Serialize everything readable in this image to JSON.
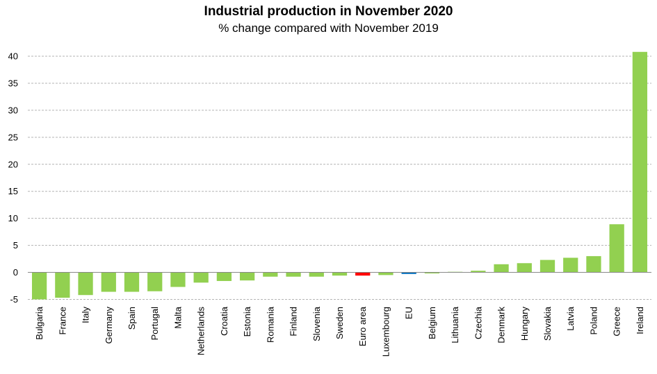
{
  "chart_data": {
    "type": "bar",
    "title": "Industrial production in November 2020",
    "subtitle": "% change compared with November 2019",
    "xlabel": "",
    "ylabel": "",
    "ylim": [
      -5,
      40
    ],
    "yticks": [
      -5,
      0,
      5,
      10,
      15,
      20,
      25,
      30,
      35,
      40
    ],
    "grid": true,
    "categories": [
      "Bulgaria",
      "France",
      "Italy",
      "Germany",
      "Spain",
      "Portugal",
      "Malta",
      "Netherlands",
      "Croatia",
      "Estonia",
      "Romania",
      "Finland",
      "Slovenia",
      "Sweden",
      "Euro area",
      "Luxembourg",
      "EU",
      "Belgium",
      "Lithuania",
      "Czechia",
      "Denmark",
      "Hungary",
      "Slovakia",
      "Latvia",
      "Poland",
      "Greece",
      "Ireland"
    ],
    "values": [
      -5.0,
      -4.7,
      -4.2,
      -3.6,
      -3.6,
      -3.5,
      -2.7,
      -1.9,
      -1.6,
      -1.5,
      -0.8,
      -0.8,
      -0.8,
      -0.6,
      -0.6,
      -0.5,
      -0.3,
      -0.2,
      0.1,
      0.3,
      1.5,
      1.7,
      2.3,
      2.7,
      3.0,
      8.9,
      40.8
    ],
    "colors": {
      "default": "#92D050",
      "Euro area": "#FF0000",
      "EU": "#0070C0"
    }
  }
}
